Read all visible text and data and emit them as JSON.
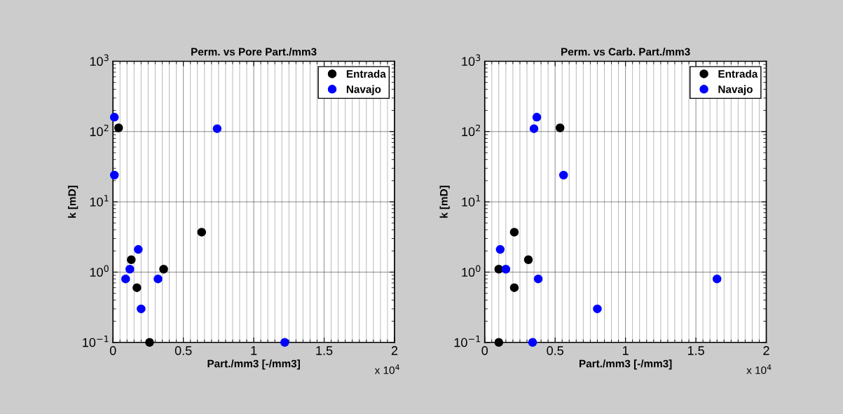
{
  "chart_data": [
    {
      "type": "scatter",
      "title": "Perm. vs Pore Part./mm3",
      "xlabel": "Part./mm3 [-/mm3]",
      "ylabel": "k [mD]",
      "log": "y",
      "grid": true,
      "legend": "top right",
      "marker": "circle",
      "xlim": [
        0,
        2
      ],
      "xticks": [
        0,
        0.5,
        1,
        1.5,
        2
      ],
      "ylim": [
        0.1,
        1000
      ],
      "yticks": [
        {
          "value": 0.1,
          "label": "10$^{−1}$"
        },
        {
          "value": 1,
          "label": "10$^{0}$"
        },
        {
          "value": 10,
          "label": "10$^{1}$"
        },
        {
          "value": 100,
          "label": "10$^{2}$"
        },
        {
          "value": 1000,
          "label": "10$^{3}$"
        }
      ],
      "annotations": [
        "x 10$^{4}$"
      ],
      "series": [
        {
          "name": "Entrada",
          "color": "#000000",
          "x": [
            0.04,
            0.63,
            0.13,
            0.36,
            0.17,
            0.26
          ],
          "values": [
            113,
            3.7,
            1.5,
            1.1,
            0.6,
            0.1
          ]
        },
        {
          "name": "Navajo",
          "color": "#0000ff",
          "x": [
            0.01,
            0.01,
            0.74,
            0.18,
            0.12,
            0.09,
            0.32,
            0.2,
            1.22
          ],
          "values": [
            160,
            24,
            110,
            2.1,
            1.1,
            0.8,
            0.8,
            0.3,
            0.1
          ]
        }
      ]
    },
    {
      "type": "scatter",
      "title": "Perm. vs Carb. Part./mm3",
      "xlabel": "Part./mm3 [-/mm3]",
      "ylabel": "k [mD]",
      "log": "y",
      "grid": true,
      "legend": "top right",
      "marker": "circle",
      "xlim": [
        0,
        2
      ],
      "xticks": [
        0,
        0.5,
        1,
        1.5,
        2
      ],
      "ylim": [
        0.1,
        1000
      ],
      "yticks": [
        {
          "value": 0.1,
          "label": "10$^{−1}$"
        },
        {
          "value": 1,
          "label": "10$^{0}$"
        },
        {
          "value": 10,
          "label": "10$^{1}$"
        },
        {
          "value": 100,
          "label": "10$^{2}$"
        },
        {
          "value": 1000,
          "label": "10$^{3}$"
        }
      ],
      "annotations": [
        "x 10$^{4}$"
      ],
      "series": [
        {
          "name": "Entrada",
          "color": "#000000",
          "x": [
            0.535,
            0.21,
            0.31,
            0.1,
            0.21,
            0.1
          ],
          "values": [
            113,
            3.7,
            1.5,
            1.1,
            0.6,
            0.1
          ]
        },
        {
          "name": "Navajo",
          "color": "#0000ff",
          "x": [
            0.37,
            0.35,
            0.56,
            0.11,
            0.15,
            0.38,
            0.34,
            0.8,
            1.65
          ],
          "values": [
            160,
            110,
            24,
            2.1,
            1.1,
            0.8,
            0.1,
            0.3,
            0.8
          ]
        }
      ]
    }
  ]
}
